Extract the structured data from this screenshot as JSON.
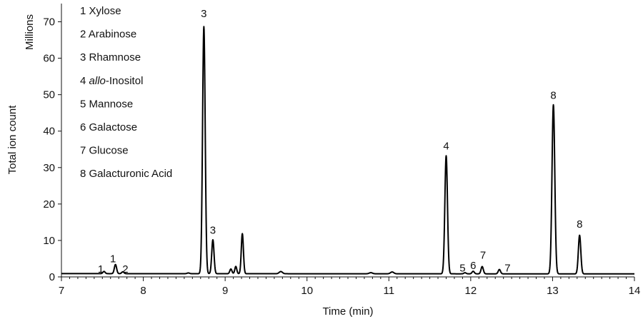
{
  "chart_data": {
    "type": "line",
    "xlabel": "Time (min)",
    "ylabel": "Total ion count",
    "yunit": "Millions",
    "xlim": [
      7,
      14
    ],
    "ylim": [
      0,
      75
    ],
    "x_ticks": [
      7,
      8,
      9,
      10,
      11,
      12,
      13,
      14
    ],
    "y_ticks": [
      0,
      10,
      20,
      30,
      40,
      50,
      60,
      70
    ],
    "legend": [
      {
        "num": "1",
        "name": "Xylose"
      },
      {
        "num": "2",
        "name": "Arabinose"
      },
      {
        "num": "3",
        "name": "Rhamnose"
      },
      {
        "num": "4",
        "name": "Inositol",
        "prefix": "allo",
        "sep": "-"
      },
      {
        "num": "5",
        "name": "Mannose"
      },
      {
        "num": "6",
        "name": "Galactose"
      },
      {
        "num": "7",
        "name": "Glucose"
      },
      {
        "num": "8",
        "name": "Galacturonic Acid"
      }
    ],
    "baseline": 0.9,
    "peaks": [
      {
        "x": 7.52,
        "y": 0.6,
        "w": 0.014
      },
      {
        "x": 7.66,
        "y": 2.5,
        "w": 0.014
      },
      {
        "x": 7.75,
        "y": 0.5,
        "w": 0.014
      },
      {
        "x": 8.55,
        "y": 0.2,
        "w": 0.015
      },
      {
        "x": 8.74,
        "y": 67.8,
        "w": 0.016
      },
      {
        "x": 8.85,
        "y": 9.3,
        "w": 0.014
      },
      {
        "x": 9.07,
        "y": 1.3,
        "w": 0.013
      },
      {
        "x": 9.13,
        "y": 2.0,
        "w": 0.012
      },
      {
        "x": 9.21,
        "y": 11.0,
        "w": 0.013
      },
      {
        "x": 9.68,
        "y": 0.6,
        "w": 0.02
      },
      {
        "x": 10.78,
        "y": 0.3,
        "w": 0.02
      },
      {
        "x": 11.04,
        "y": 0.5,
        "w": 0.02
      },
      {
        "x": 11.7,
        "y": 32.4,
        "w": 0.016
      },
      {
        "x": 11.93,
        "y": 0.3,
        "w": 0.014
      },
      {
        "x": 12.03,
        "y": 0.7,
        "w": 0.014
      },
      {
        "x": 12.14,
        "y": 2.0,
        "w": 0.014
      },
      {
        "x": 12.35,
        "y": 1.2,
        "w": 0.014
      },
      {
        "x": 13.01,
        "y": 46.4,
        "w": 0.017
      },
      {
        "x": 13.33,
        "y": 10.6,
        "w": 0.015
      }
    ],
    "peak_labels": [
      {
        "text": "1",
        "x": 7.48,
        "y": 1.2
      },
      {
        "text": "1",
        "x": 7.63,
        "y": 4.0
      },
      {
        "text": "2",
        "x": 7.78,
        "y": 1.2
      },
      {
        "text": "3",
        "x": 8.74,
        "y": 71.3
      },
      {
        "text": "3",
        "x": 8.85,
        "y": 11.8
      },
      {
        "text": "4",
        "x": 11.7,
        "y": 35.0
      },
      {
        "text": "5",
        "x": 11.9,
        "y": 1.5
      },
      {
        "text": "6",
        "x": 12.03,
        "y": 2.2
      },
      {
        "text": "7",
        "x": 12.15,
        "y": 5.0
      },
      {
        "text": "7",
        "x": 12.45,
        "y": 1.5
      },
      {
        "text": "8",
        "x": 13.01,
        "y": 48.9
      },
      {
        "text": "8",
        "x": 13.33,
        "y": 13.5
      }
    ],
    "line_color": "#000000",
    "grid": false
  }
}
